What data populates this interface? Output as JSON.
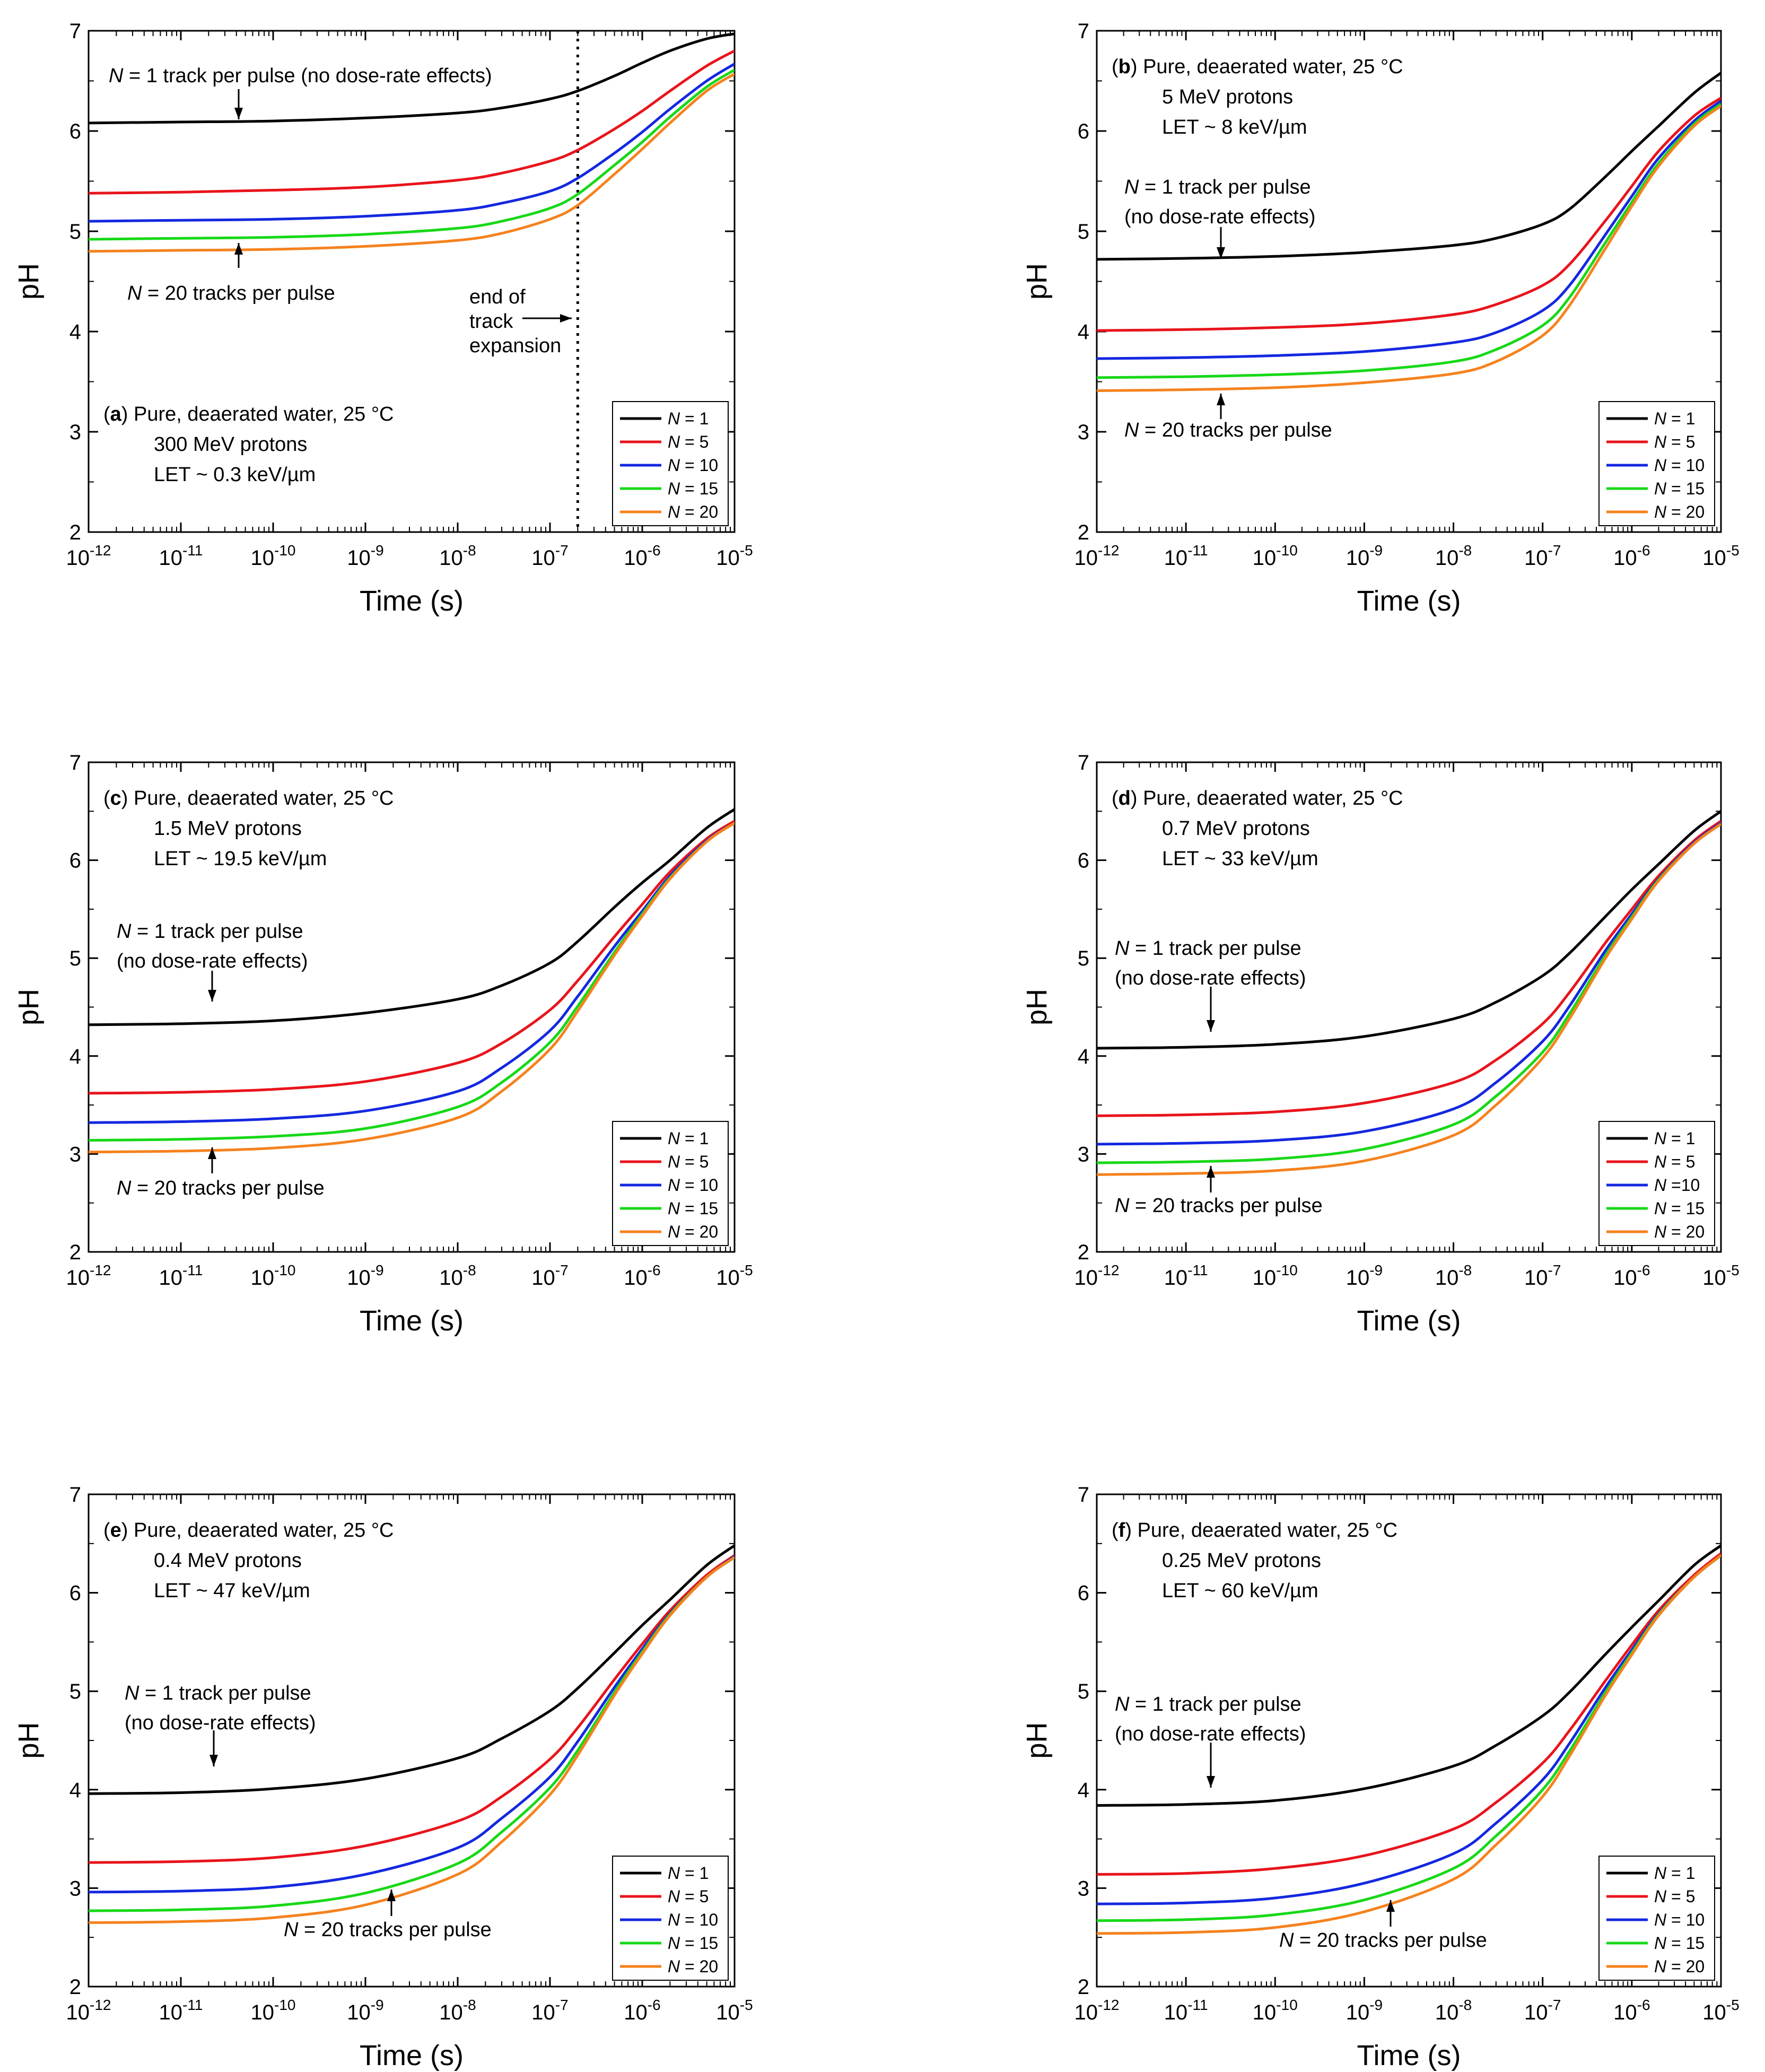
{
  "chart_data": [
    {
      "type": "line",
      "panel": "a",
      "title_lines": [
        "Pure, deaerated water, 25 °C",
        "300 MeV protons",
        "LET ~ 0.3 keV/µm"
      ],
      "xlabel": "Time (s)",
      "ylabel": "pH",
      "xscale": "log",
      "xlim": [
        1e-12,
        1e-05
      ],
      "ylim": [
        2,
        7
      ],
      "x": [
        1e-12,
        1e-11,
        1e-10,
        1e-09,
        1e-08,
        3e-08,
        1e-07,
        2e-07,
        5e-07,
        1e-06,
        2e-06,
        5e-06,
        1e-05
      ],
      "series": [
        {
          "name": "N = 1",
          "color": "#000000",
          "values": [
            6.08,
            6.09,
            6.1,
            6.13,
            6.18,
            6.23,
            6.32,
            6.4,
            6.55,
            6.68,
            6.8,
            6.92,
            6.97
          ]
        },
        {
          "name": "N = 5",
          "color": "#e8141c",
          "values": [
            5.38,
            5.39,
            5.41,
            5.44,
            5.51,
            5.58,
            5.7,
            5.81,
            6.02,
            6.2,
            6.4,
            6.65,
            6.8
          ]
        },
        {
          "name": "N = 10",
          "color": "#1428e0",
          "values": [
            5.1,
            5.11,
            5.12,
            5.15,
            5.21,
            5.28,
            5.4,
            5.53,
            5.78,
            5.99,
            6.22,
            6.5,
            6.67
          ]
        },
        {
          "name": "N = 15",
          "color": "#18d818",
          "values": [
            4.92,
            4.93,
            4.94,
            4.97,
            5.03,
            5.1,
            5.23,
            5.37,
            5.66,
            5.89,
            6.14,
            6.44,
            6.61
          ]
        },
        {
          "name": "N = 20",
          "color": "#f5821e",
          "values": [
            4.8,
            4.81,
            4.82,
            4.85,
            4.91,
            4.98,
            5.12,
            5.26,
            5.57,
            5.82,
            6.08,
            6.4,
            6.57
          ]
        }
      ],
      "legend": [
        "N = 1",
        "N = 5",
        "N = 10",
        "N = 15",
        "N = 20"
      ],
      "legend_position": "lower-right",
      "annotations": [
        {
          "text": "N = 1 track per pulse (no dose-rate effects)"
        },
        {
          "text": "N = 20 tracks per pulse"
        },
        {
          "lines": [
            "end of",
            "track",
            "expansion"
          ]
        }
      ],
      "vline_x": 2e-07
    },
    {
      "type": "line",
      "panel": "b",
      "title_lines": [
        "Pure, deaerated water, 25 °C",
        "5 MeV protons",
        "LET ~ 8 keV/µm"
      ],
      "xlabel": "Time (s)",
      "ylabel": "pH",
      "xscale": "log",
      "xlim": [
        1e-12,
        1e-05
      ],
      "ylim": [
        2,
        7
      ],
      "x": [
        1e-12,
        1e-11,
        1e-10,
        1e-09,
        1e-08,
        3e-08,
        1e-07,
        2e-07,
        5e-07,
        1e-06,
        2e-06,
        5e-06,
        1e-05
      ],
      "series": [
        {
          "name": "N = 1",
          "color": "#000000",
          "values": [
            4.72,
            4.73,
            4.75,
            4.79,
            4.86,
            4.93,
            5.07,
            5.22,
            5.54,
            5.8,
            6.05,
            6.38,
            6.58
          ]
        },
        {
          "name": "N = 5",
          "color": "#e8141c",
          "values": [
            4.01,
            4.02,
            4.04,
            4.08,
            4.17,
            4.27,
            4.46,
            4.67,
            5.1,
            5.45,
            5.8,
            6.15,
            6.33
          ]
        },
        {
          "name": "N = 10",
          "color": "#1428e0",
          "values": [
            3.73,
            3.74,
            3.76,
            3.8,
            3.89,
            3.99,
            4.21,
            4.46,
            4.96,
            5.35,
            5.73,
            6.1,
            6.3
          ]
        },
        {
          "name": "N = 15",
          "color": "#18d818",
          "values": [
            3.54,
            3.55,
            3.57,
            3.61,
            3.7,
            3.82,
            4.06,
            4.34,
            4.88,
            5.29,
            5.68,
            6.07,
            6.27
          ]
        },
        {
          "name": "N = 20",
          "color": "#f5821e",
          "values": [
            3.41,
            3.42,
            3.44,
            3.49,
            3.58,
            3.7,
            3.96,
            4.26,
            4.82,
            5.25,
            5.65,
            6.05,
            6.25
          ]
        }
      ],
      "legend": [
        "N = 1",
        "N = 5",
        "N = 10",
        "N = 15",
        "N = 20"
      ],
      "legend_position": "lower-right",
      "annotations": [
        {
          "lines": [
            "N = 1 track per pulse",
            "(no dose-rate effects)"
          ]
        },
        {
          "text": "N = 20 tracks per pulse"
        }
      ]
    },
    {
      "type": "line",
      "panel": "c",
      "title_lines": [
        "Pure, deaerated water, 25 °C",
        "1.5 MeV protons",
        "LET ~ 19.5 keV/µm"
      ],
      "xlabel": "Time (s)",
      "ylabel": "pH",
      "xscale": "log",
      "xlim": [
        1e-12,
        1e-05
      ],
      "ylim": [
        2,
        7
      ],
      "x": [
        1e-12,
        1e-11,
        1e-10,
        1e-09,
        1e-08,
        3e-08,
        1e-07,
        2e-07,
        5e-07,
        1e-06,
        2e-06,
        5e-06,
        1e-05
      ],
      "series": [
        {
          "name": "N = 1",
          "color": "#000000",
          "values": [
            4.32,
            4.33,
            4.36,
            4.44,
            4.58,
            4.72,
            4.95,
            5.17,
            5.52,
            5.77,
            6.0,
            6.33,
            6.52
          ]
        },
        {
          "name": "N = 5",
          "color": "#e8141c",
          "values": [
            3.62,
            3.63,
            3.66,
            3.74,
            3.93,
            4.13,
            4.47,
            4.77,
            5.22,
            5.55,
            5.88,
            6.22,
            6.4
          ]
        },
        {
          "name": "N = 10",
          "color": "#1428e0",
          "values": [
            3.32,
            3.33,
            3.36,
            3.44,
            3.64,
            3.88,
            4.26,
            4.61,
            5.12,
            5.48,
            5.84,
            6.2,
            6.38
          ]
        },
        {
          "name": "N = 15",
          "color": "#18d818",
          "values": [
            3.14,
            3.15,
            3.18,
            3.26,
            3.48,
            3.73,
            4.14,
            4.51,
            5.06,
            5.45,
            5.82,
            6.19,
            6.38
          ]
        },
        {
          "name": "N = 20",
          "color": "#f5821e",
          "values": [
            3.02,
            3.03,
            3.06,
            3.15,
            3.37,
            3.64,
            4.07,
            4.46,
            5.03,
            5.43,
            5.81,
            6.19,
            6.38
          ]
        }
      ],
      "legend": [
        "N = 1",
        "N = 5",
        "N = 10",
        "N = 15",
        "N = 20"
      ],
      "legend_position": "lower-right",
      "annotations": [
        {
          "lines": [
            "N = 1 track per pulse",
            "(no dose-rate effects)"
          ]
        },
        {
          "text": "N = 20 tracks per pulse"
        }
      ]
    },
    {
      "type": "line",
      "panel": "d",
      "title_lines": [
        "Pure, deaerated water, 25 °C",
        "0.7 MeV protons",
        "LET ~ 33 keV/µm"
      ],
      "xlabel": "Time (s)",
      "ylabel": "pH",
      "xscale": "log",
      "xlim": [
        1e-12,
        1e-05
      ],
      "ylim": [
        2,
        7
      ],
      "x": [
        1e-12,
        1e-11,
        1e-10,
        1e-09,
        1e-08,
        3e-08,
        1e-07,
        2e-07,
        5e-07,
        1e-06,
        2e-06,
        5e-06,
        1e-05
      ],
      "series": [
        {
          "name": "N = 1",
          "color": "#000000",
          "values": [
            4.08,
            4.09,
            4.12,
            4.2,
            4.38,
            4.55,
            4.82,
            5.05,
            5.42,
            5.7,
            5.96,
            6.3,
            6.5
          ]
        },
        {
          "name": "N = 5",
          "color": "#e8141c",
          "values": [
            3.39,
            3.4,
            3.43,
            3.52,
            3.73,
            3.96,
            4.33,
            4.65,
            5.15,
            5.5,
            5.84,
            6.2,
            6.4
          ]
        },
        {
          "name": "N = 10",
          "color": "#1428e0",
          "values": [
            3.1,
            3.11,
            3.14,
            3.23,
            3.46,
            3.73,
            4.15,
            4.51,
            5.07,
            5.45,
            5.81,
            6.18,
            6.38
          ]
        },
        {
          "name": "N = 15",
          "color": "#18d818",
          "values": [
            2.91,
            2.92,
            2.95,
            3.05,
            3.3,
            3.59,
            4.04,
            4.43,
            5.02,
            5.42,
            5.8,
            6.17,
            6.37
          ]
        },
        {
          "name": "N = 20",
          "color": "#f5821e",
          "values": [
            2.79,
            2.8,
            2.83,
            2.93,
            3.19,
            3.5,
            3.98,
            4.38,
            4.99,
            5.4,
            5.79,
            6.17,
            6.37
          ]
        }
      ],
      "legend": [
        "N = 1",
        "N = 5",
        "N =10",
        "N = 15",
        "N = 20"
      ],
      "legend_position": "lower-right",
      "annotations": [
        {
          "lines": [
            "N = 1 track per pulse",
            "(no dose-rate effects)"
          ]
        },
        {
          "text": "N = 20 tracks per pulse"
        }
      ]
    },
    {
      "type": "line",
      "panel": "e",
      "title_lines": [
        "Pure, deaerated water, 25 °C",
        "0.4 MeV protons",
        "LET ~ 47 keV/µm"
      ],
      "xlabel": "Time (s)",
      "ylabel": "pH",
      "xscale": "log",
      "xlim": [
        1e-12,
        1e-05
      ],
      "ylim": [
        2,
        7
      ],
      "x": [
        1e-12,
        1e-11,
        1e-10,
        1e-09,
        1e-08,
        3e-08,
        1e-07,
        2e-07,
        5e-07,
        1e-06,
        2e-06,
        5e-06,
        1e-05
      ],
      "series": [
        {
          "name": "N = 1",
          "color": "#000000",
          "values": [
            3.96,
            3.97,
            4.01,
            4.11,
            4.32,
            4.52,
            4.8,
            5.03,
            5.39,
            5.67,
            5.93,
            6.28,
            6.48
          ]
        },
        {
          "name": "N = 5",
          "color": "#e8141c",
          "values": [
            3.26,
            3.27,
            3.31,
            3.43,
            3.68,
            3.93,
            4.31,
            4.63,
            5.12,
            5.48,
            5.82,
            6.18,
            6.38
          ]
        },
        {
          "name": "N = 10",
          "color": "#1428e0",
          "values": [
            2.96,
            2.97,
            3.01,
            3.14,
            3.41,
            3.71,
            4.13,
            4.49,
            5.04,
            5.43,
            5.79,
            6.16,
            6.37
          ]
        },
        {
          "name": "N = 15",
          "color": "#18d818",
          "values": [
            2.77,
            2.78,
            2.82,
            2.95,
            3.25,
            3.57,
            4.02,
            4.4,
            4.99,
            5.4,
            5.78,
            6.16,
            6.36
          ]
        },
        {
          "name": "N = 20",
          "color": "#f5821e",
          "values": [
            2.65,
            2.66,
            2.7,
            2.83,
            3.14,
            3.47,
            3.95,
            4.35,
            4.96,
            5.38,
            5.77,
            6.16,
            6.36
          ]
        }
      ],
      "legend": [
        "N = 1",
        "N = 5",
        "N = 10",
        "N = 15",
        "N = 20"
      ],
      "legend_position": "lower-right",
      "annotations": [
        {
          "lines": [
            "N = 1 track per pulse",
            "(no dose-rate effects)"
          ]
        },
        {
          "text": "N = 20 tracks per pulse"
        }
      ]
    },
    {
      "type": "line",
      "panel": "f",
      "title_lines": [
        "Pure, deaerated water, 25 °C",
        "0.25 MeV protons",
        "LET ~ 60 keV/µm"
      ],
      "xlabel": "Time (s)",
      "ylabel": "pH",
      "xscale": "log",
      "xlim": [
        1e-12,
        1e-05
      ],
      "ylim": [
        2,
        7
      ],
      "x": [
        1e-12,
        1e-11,
        1e-10,
        1e-09,
        1e-08,
        3e-08,
        1e-07,
        2e-07,
        5e-07,
        1e-06,
        2e-06,
        5e-06,
        1e-05
      ],
      "series": [
        {
          "name": "N = 1",
          "color": "#000000",
          "values": [
            3.84,
            3.85,
            3.89,
            4.01,
            4.24,
            4.45,
            4.75,
            4.99,
            5.37,
            5.65,
            5.92,
            6.28,
            6.48
          ]
        },
        {
          "name": "N = 5",
          "color": "#e8141c",
          "values": [
            3.14,
            3.15,
            3.2,
            3.33,
            3.6,
            3.87,
            4.27,
            4.6,
            5.1,
            5.47,
            5.82,
            6.18,
            6.4
          ]
        },
        {
          "name": "N = 10",
          "color": "#1428e0",
          "values": [
            2.84,
            2.85,
            2.9,
            3.05,
            3.35,
            3.66,
            4.1,
            4.47,
            5.03,
            5.42,
            5.79,
            6.16,
            6.38
          ]
        },
        {
          "name": "N = 15",
          "color": "#18d818",
          "values": [
            2.67,
            2.68,
            2.73,
            2.88,
            3.2,
            3.53,
            4.0,
            4.39,
            4.98,
            5.39,
            5.78,
            6.16,
            6.38
          ]
        },
        {
          "name": "N = 20",
          "color": "#f5821e",
          "values": [
            2.54,
            2.55,
            2.6,
            2.76,
            3.09,
            3.44,
            3.93,
            4.34,
            4.95,
            5.37,
            5.77,
            6.16,
            6.38
          ]
        }
      ],
      "legend": [
        "N = 1",
        "N = 5",
        "N = 10",
        "N = 15",
        "N = 20"
      ],
      "legend_position": "lower-right",
      "annotations": [
        {
          "lines": [
            "N = 1 track per pulse",
            "(no dose-rate effects)"
          ]
        },
        {
          "text": "N = 20 tracks per pulse"
        }
      ]
    }
  ]
}
